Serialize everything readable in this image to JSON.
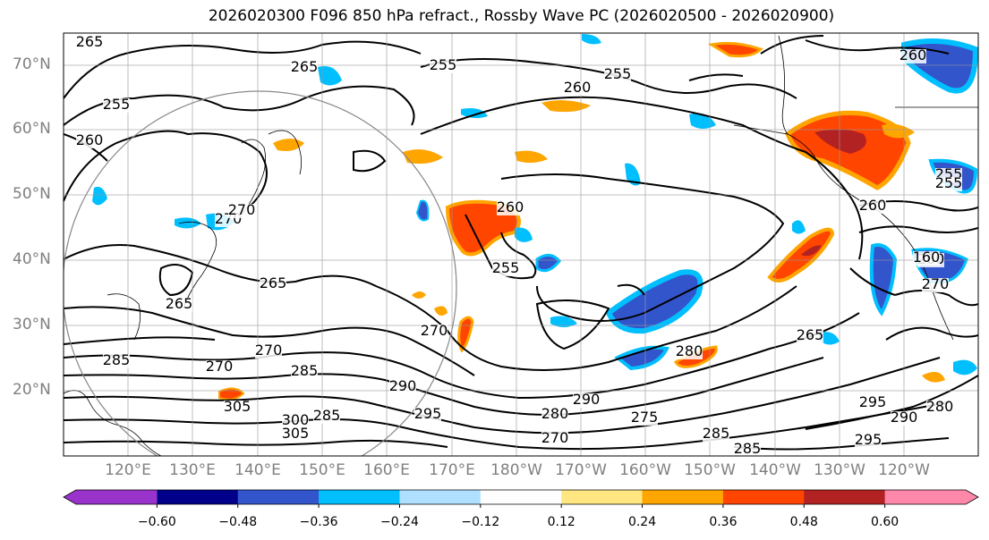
{
  "title": "2026020300 F096 850 hPa refract., Rossby Wave PC (2026020500 - 2026020900)",
  "lat_labels": [
    "70°N",
    "60°N",
    "50°N",
    "40°N",
    "30°N",
    "20°N"
  ],
  "lon_labels": [
    "120°E",
    "130°E",
    "140°E",
    "150°E",
    "160°E",
    "170°E",
    "180°W",
    "170°W",
    "160°W",
    "150°W",
    "140°W",
    "130°W",
    "120°W"
  ],
  "contour_labels": [
    "265",
    "255",
    "260",
    "265",
    "255",
    "260",
    "255",
    "260",
    "270",
    "255",
    "270",
    "260",
    "260",
    "255",
    "260",
    "265",
    "265",
    "270",
    "270",
    "265",
    "270",
    "285",
    "270",
    "285",
    "290",
    "295",
    "305",
    "300",
    "305",
    "285",
    "295",
    "280",
    "290",
    "270",
    "280",
    "275",
    "285",
    "285",
    "290",
    "295",
    "280",
    "160",
    "255"
  ],
  "colorbar": {
    "ticks": [
      "−0.60",
      "−0.48",
      "−0.36",
      "−0.24",
      "−0.12",
      "0.12",
      "0.24",
      "0.36",
      "0.48",
      "0.60"
    ],
    "colors": [
      "#9933cc",
      "#00008b",
      "#3355cc",
      "#00bfff",
      "#b0e0ff",
      "#ffffff",
      "#ffe680",
      "#ffa500",
      "#ff4500",
      "#b22222",
      "#ff88aa"
    ]
  }
}
